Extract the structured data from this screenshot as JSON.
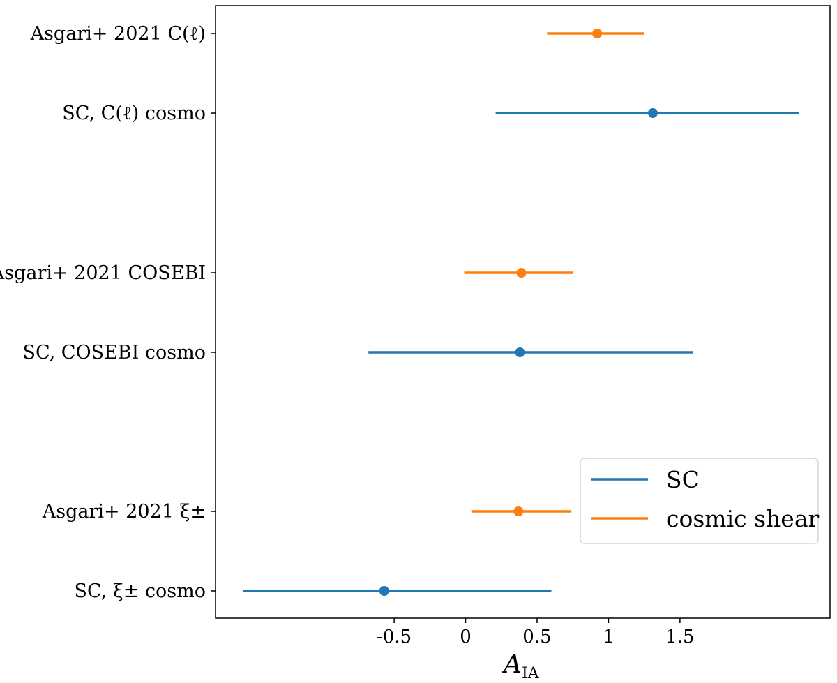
{
  "chart_data": {
    "type": "errorbar",
    "title": "",
    "xlabel": "A",
    "xlabel_subscript": "IA",
    "ylabel": "",
    "xlim": [
      -1.75,
      2.55
    ],
    "x_ticks": [
      {
        "value": -0.5,
        "label": "-0.5"
      },
      {
        "value": 0,
        "label": "0"
      },
      {
        "value": 0.5,
        "label": "0.5"
      },
      {
        "value": 1,
        "label": "1"
      },
      {
        "value": 1.5,
        "label": "1.5"
      }
    ],
    "colors": {
      "SC": "#1f77b4",
      "cosmic shear": "#ff7f0e"
    },
    "legend": {
      "position": "lower-right",
      "entries": [
        {
          "series": "SC",
          "label": "SC"
        },
        {
          "series": "cosmic shear",
          "label": "cosmic shear"
        }
      ]
    },
    "points": [
      {
        "label": "Asgari+ 2021 C(ℓ)",
        "series": "cosmic shear",
        "value": 0.92,
        "lower": 0.57,
        "upper": 1.25
      },
      {
        "label": "SC, C(ℓ) cosmo",
        "series": "SC",
        "value": 1.31,
        "lower": 0.21,
        "upper": 2.33
      },
      {
        "label": "Asgari+ 2021 COSEBI",
        "series": "cosmic shear",
        "value": 0.39,
        "lower": -0.01,
        "upper": 0.75
      },
      {
        "label": "SC, COSEBI cosmo",
        "series": "SC",
        "value": 0.38,
        "lower": -0.68,
        "upper": 1.59
      },
      {
        "label": "Asgari+ 2021 ξ±",
        "series": "cosmic shear",
        "value": 0.37,
        "lower": 0.04,
        "upper": 0.74
      },
      {
        "label": "SC, ξ± cosmo",
        "series": "SC",
        "value": -0.57,
        "lower": -1.56,
        "upper": 0.6
      }
    ]
  }
}
